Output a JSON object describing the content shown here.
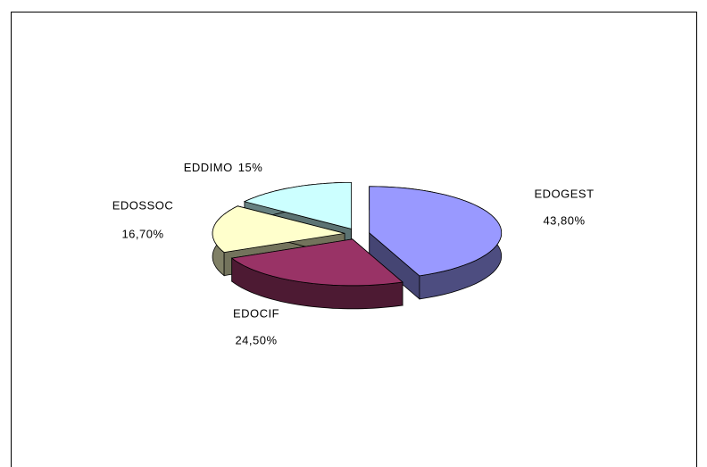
{
  "chart_data": {
    "type": "pie3d",
    "categories": [
      "EDOGEST",
      "EDOCIF",
      "EDOSSOC",
      "EDDIMO"
    ],
    "values": [
      43.8,
      24.5,
      16.7,
      15
    ],
    "value_labels": [
      "43,80%",
      "24,50%",
      "16,70%",
      "15%"
    ],
    "colors": [
      "#9999ff",
      "#993366",
      "#ffffcc",
      "#ccffff"
    ]
  }
}
